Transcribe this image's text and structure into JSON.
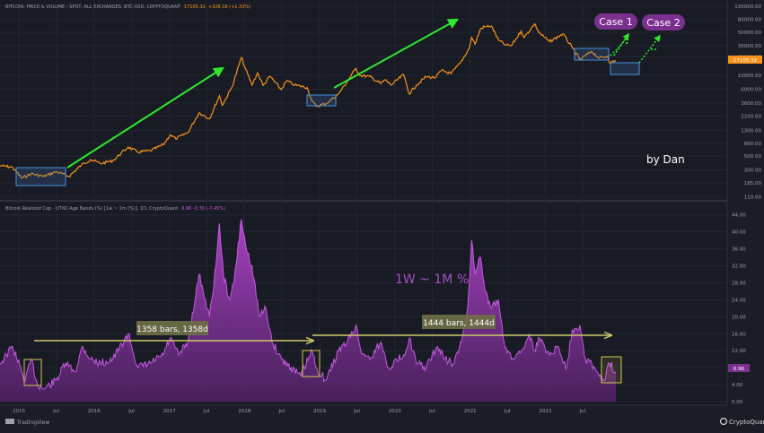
{
  "header": {
    "title": "BITCOIN: PRICE & VOLUME - SPOT, ALL EXCHANGES, BTC-USD, CRYPTOQUANT",
    "last_price": "17105.32",
    "change": "+328.18 (+1.33%)",
    "price_tag": "17105.32"
  },
  "indicator": {
    "title": "Bitcoin Realized Cap - UTXO Age Bands (%) [1w ~ 1m (%)], 1D, CryptoQuant",
    "values": "6.96  -0.30 (-7.45%)",
    "value_tag": "6.96",
    "big_label": "1W ~ 1M %"
  },
  "annotations": {
    "case1": "Case 1",
    "case2": "Case 2",
    "author": "by Dan",
    "span1": "1358 bars, 1358d",
    "span2": "1444 bars, 1444d"
  },
  "branding": {
    "left": "TradingView",
    "right": "CryptoQuant"
  },
  "chart_data": [
    {
      "type": "line",
      "name": "BTC price",
      "y_scale": "log",
      "y_ticks": [
        "130000.00",
        "80000.00",
        "50000.00",
        "30000.00",
        "20000.00",
        "10000.00",
        "6000.00",
        "3600.00",
        "2200.00",
        "1300.00",
        "800.00",
        "500.00",
        "300.00",
        "185.00",
        "110.00"
      ],
      "tick_values": [
        130000,
        80000,
        50000,
        30000,
        20000,
        10000,
        6000,
        3600,
        2200,
        1300,
        800,
        500,
        300,
        185,
        110
      ],
      "ylim": [
        105,
        135000
      ],
      "x_labels": [
        "2015",
        "Jul",
        "2016",
        "Jul",
        "2017",
        "Jul",
        "2018",
        "Jul",
        "2019",
        "Jul",
        "2020",
        "Jul",
        "2021",
        "Jul",
        "2022",
        "Jul"
      ],
      "x_label_dates": [
        "2015-01-01",
        "2015-07-01",
        "2016-01-01",
        "2016-07-01",
        "2017-01-01",
        "2017-07-01",
        "2018-01-01",
        "2018-07-01",
        "2019-01-01",
        "2019-07-01",
        "2020-01-01",
        "2020-07-01",
        "2021-01-01",
        "2021-07-01",
        "2022-01-01",
        "2022-07-01"
      ],
      "points": [
        [
          "2014-10-01",
          350
        ],
        [
          "2014-12-01",
          330
        ],
        [
          "2015-01-15",
          220
        ],
        [
          "2015-03-01",
          260
        ],
        [
          "2015-05-01",
          235
        ],
        [
          "2015-07-01",
          280
        ],
        [
          "2015-09-01",
          235
        ],
        [
          "2015-11-01",
          360
        ],
        [
          "2015-12-15",
          440
        ],
        [
          "2016-02-01",
          380
        ],
        [
          "2016-04-01",
          420
        ],
        [
          "2016-06-15",
          700
        ],
        [
          "2016-08-01",
          580
        ],
        [
          "2016-10-01",
          610
        ],
        [
          "2016-12-01",
          760
        ],
        [
          "2017-01-05",
          1100
        ],
        [
          "2017-02-01",
          950
        ],
        [
          "2017-04-01",
          1200
        ],
        [
          "2017-05-25",
          2500
        ],
        [
          "2017-07-15",
          2000
        ],
        [
          "2017-09-01",
          4700
        ],
        [
          "2017-09-15",
          3300
        ],
        [
          "2017-11-01",
          6500
        ],
        [
          "2017-12-17",
          19500
        ],
        [
          "2018-01-01",
          14000
        ],
        [
          "2018-02-06",
          7000
        ],
        [
          "2018-03-05",
          11000
        ],
        [
          "2018-04-01",
          6900
        ],
        [
          "2018-05-05",
          9700
        ],
        [
          "2018-06-28",
          5900
        ],
        [
          "2018-07-25",
          8200
        ],
        [
          "2018-09-01",
          7000
        ],
        [
          "2018-11-01",
          6400
        ],
        [
          "2018-11-25",
          3800
        ],
        [
          "2018-12-15",
          3200
        ],
        [
          "2019-02-01",
          3500
        ],
        [
          "2019-04-02",
          5000
        ],
        [
          "2019-05-15",
          8000
        ],
        [
          "2019-06-26",
          13000
        ],
        [
          "2019-07-15",
          10000
        ],
        [
          "2019-09-01",
          9600
        ],
        [
          "2019-10-25",
          7400
        ],
        [
          "2019-11-15",
          8500
        ],
        [
          "2019-12-15",
          7000
        ],
        [
          "2020-02-13",
          10300
        ],
        [
          "2020-03-12",
          5000
        ],
        [
          "2020-04-15",
          7000
        ],
        [
          "2020-06-01",
          9500
        ],
        [
          "2020-07-15",
          9200
        ],
        [
          "2020-08-15",
          12000
        ],
        [
          "2020-10-01",
          10700
        ],
        [
          "2020-11-15",
          16000
        ],
        [
          "2020-12-27",
          27000
        ],
        [
          "2021-01-08",
          41000
        ],
        [
          "2021-01-25",
          32000
        ],
        [
          "2021-02-21",
          57000
        ],
        [
          "2021-03-13",
          61000
        ],
        [
          "2021-04-14",
          63000
        ],
        [
          "2021-05-19",
          37000
        ],
        [
          "2021-06-22",
          31000
        ],
        [
          "2021-07-20",
          30000
        ],
        [
          "2021-09-06",
          52000
        ],
        [
          "2021-09-21",
          41000
        ],
        [
          "2021-11-10",
          68000
        ],
        [
          "2021-12-04",
          48000
        ],
        [
          "2022-01-22",
          35000
        ],
        [
          "2022-03-28",
          47000
        ],
        [
          "2022-05-12",
          28000
        ],
        [
          "2022-06-18",
          18000
        ],
        [
          "2022-08-14",
          24500
        ],
        [
          "2022-09-20",
          19000
        ],
        [
          "2022-11-01",
          20500
        ],
        [
          "2022-11-09",
          16000
        ],
        [
          "2022-12-10",
          17105
        ]
      ]
    },
    {
      "type": "area",
      "name": "1w ~ 1m (%)",
      "y_ticks": [
        "44.00",
        "40.00",
        "36.00",
        "32.00",
        "28.00",
        "24.00",
        "20.00",
        "16.00",
        "12.00",
        "8.00",
        "4.00",
        "0.00"
      ],
      "tick_values": [
        44,
        40,
        36,
        32,
        28,
        24,
        20,
        16,
        12,
        8,
        4,
        0
      ],
      "ylim": [
        0,
        45
      ],
      "points": [
        [
          "2014-10-01",
          9
        ],
        [
          "2014-11-01",
          11
        ],
        [
          "2014-12-01",
          13
        ],
        [
          "2015-01-15",
          7
        ],
        [
          "2015-02-01",
          5
        ],
        [
          "2015-03-01",
          10
        ],
        [
          "2015-04-01",
          4
        ],
        [
          "2015-05-01",
          3
        ],
        [
          "2015-07-01",
          5
        ],
        [
          "2015-08-15",
          9
        ],
        [
          "2015-10-01",
          7
        ],
        [
          "2015-11-05",
          13
        ],
        [
          "2015-12-15",
          10
        ],
        [
          "2016-02-01",
          9
        ],
        [
          "2016-04-01",
          10
        ],
        [
          "2016-06-15",
          16
        ],
        [
          "2016-08-01",
          8
        ],
        [
          "2016-10-01",
          9
        ],
        [
          "2016-12-01",
          11
        ],
        [
          "2017-01-05",
          15
        ],
        [
          "2017-02-15",
          11
        ],
        [
          "2017-04-01",
          14
        ],
        [
          "2017-05-25",
          30
        ],
        [
          "2017-06-15",
          26
        ],
        [
          "2017-07-15",
          20
        ],
        [
          "2017-08-15",
          32
        ],
        [
          "2017-09-01",
          42
        ],
        [
          "2017-09-20",
          30
        ],
        [
          "2017-10-20",
          24
        ],
        [
          "2017-11-10",
          28
        ],
        [
          "2017-12-17",
          43
        ],
        [
          "2018-01-10",
          36
        ],
        [
          "2018-02-06",
          32
        ],
        [
          "2018-03-15",
          20
        ],
        [
          "2018-04-15",
          22
        ],
        [
          "2018-05-15",
          14
        ],
        [
          "2018-07-01",
          10
        ],
        [
          "2018-08-15",
          8
        ],
        [
          "2018-10-01",
          6
        ],
        [
          "2018-11-25",
          12
        ],
        [
          "2018-12-15",
          8
        ],
        [
          "2019-02-01",
          5
        ],
        [
          "2019-04-02",
          12
        ],
        [
          "2019-05-15",
          14
        ],
        [
          "2019-06-26",
          18
        ],
        [
          "2019-07-20",
          12
        ],
        [
          "2019-09-01",
          10
        ],
        [
          "2019-10-25",
          14
        ],
        [
          "2019-12-01",
          8
        ],
        [
          "2020-02-13",
          11
        ],
        [
          "2020-03-12",
          15
        ],
        [
          "2020-04-15",
          9
        ],
        [
          "2020-06-01",
          8
        ],
        [
          "2020-07-27",
          13
        ],
        [
          "2020-09-01",
          10
        ],
        [
          "2020-10-15",
          9
        ],
        [
          "2020-11-20",
          14
        ],
        [
          "2020-12-20",
          22
        ],
        [
          "2021-01-08",
          38
        ],
        [
          "2021-01-25",
          30
        ],
        [
          "2021-02-21",
          34
        ],
        [
          "2021-03-15",
          26
        ],
        [
          "2021-04-15",
          22
        ],
        [
          "2021-05-19",
          24
        ],
        [
          "2021-06-15",
          14
        ],
        [
          "2021-07-20",
          10
        ],
        [
          "2021-09-06",
          12
        ],
        [
          "2021-10-15",
          16
        ],
        [
          "2021-11-10",
          12
        ],
        [
          "2021-12-04",
          15
        ],
        [
          "2022-01-22",
          11
        ],
        [
          "2022-03-01",
          13
        ],
        [
          "2022-04-15",
          8
        ],
        [
          "2022-05-12",
          17
        ],
        [
          "2022-06-18",
          18
        ],
        [
          "2022-07-15",
          10
        ],
        [
          "2022-08-15",
          9
        ],
        [
          "2022-09-20",
          6
        ],
        [
          "2022-10-15",
          5
        ],
        [
          "2022-11-09",
          9
        ],
        [
          "2022-12-10",
          7
        ]
      ]
    }
  ],
  "colors": {
    "price_line": "#f7931a",
    "arrow": "#2ee82e",
    "indicator_line": "#b84fd0",
    "indicator_fill": "#7e2f93",
    "box_blue": "#4a90d9",
    "box_yellow": "#d4c84a",
    "case_badge": "#7b2f8f",
    "label_box": "#6e6e46"
  }
}
